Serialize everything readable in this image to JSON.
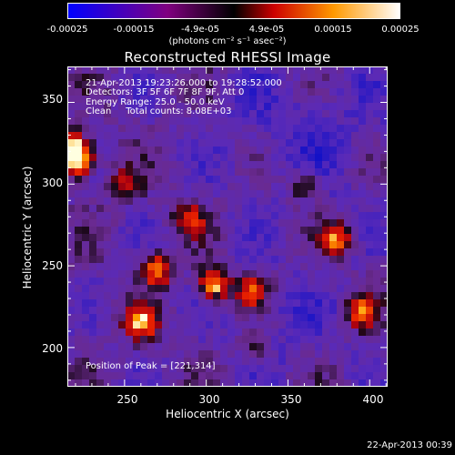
{
  "colorbar": {
    "tick_labels": [
      "-0.00025",
      "-0.00015",
      "-4.9e-05",
      "4.9e-05",
      "0.00015",
      "0.00025"
    ],
    "units": "(photons cm⁻² s⁻¹ asec⁻²)",
    "range": [
      -0.00025,
      0.00025
    ],
    "colors": {
      "low": "#0000ff",
      "mid_low": "#800080",
      "mid": "#000000",
      "mid_high": "#cc0000",
      "high_orange": "#ff9900",
      "top": "#ffffff"
    }
  },
  "title": "Reconstructed RHESSI Image",
  "info": {
    "time_range": "21-Apr-2013 19:23:26.000 to 19:28:52.000",
    "detectors": "Detectors: 3F 5F 6F 7F 8F 9F, Att 0",
    "energy": "Energy Range: 25.0 - 50.0 keV",
    "clean": "Clean     Total counts: 8.08E+03"
  },
  "peak": "Position of Peak = [221,314]",
  "axes": {
    "xlabel": "Heliocentric X (arcsec)",
    "ylabel": "Heliocentric Y (arcsec)",
    "xticks": [
      "250",
      "300",
      "350",
      "400"
    ],
    "yticks": [
      "350",
      "300",
      "250",
      "200"
    ],
    "xlim": [
      215,
      411
    ],
    "ylim": [
      176,
      372
    ]
  },
  "timestamp": "22-Apr-2013 00:39",
  "chart_data": {
    "type": "heatmap",
    "title": "Reconstructed RHESSI Image",
    "xlabel": "Heliocentric X (arcsec)",
    "ylabel": "Heliocentric Y (arcsec)",
    "xlim": [
      215,
      411
    ],
    "ylim": [
      176,
      372
    ],
    "value_range": [
      -0.00025,
      0.00025
    ],
    "peak_position": [
      221,
      314
    ],
    "sources": [
      {
        "x": 221,
        "y": 314,
        "intensity": 1.0
      },
      {
        "x": 218,
        "y": 322,
        "intensity": 0.9
      },
      {
        "x": 305,
        "y": 239,
        "intensity": 0.9
      },
      {
        "x": 260,
        "y": 215,
        "intensity": 0.75
      },
      {
        "x": 270,
        "y": 248,
        "intensity": 0.7
      },
      {
        "x": 380,
        "y": 267,
        "intensity": 0.65
      },
      {
        "x": 395,
        "y": 222,
        "intensity": 0.55
      },
      {
        "x": 328,
        "y": 234,
        "intensity": 0.6
      },
      {
        "x": 290,
        "y": 278,
        "intensity": 0.5
      },
      {
        "x": 250,
        "y": 300,
        "intensity": 0.45
      },
      {
        "x": 360,
        "y": 300,
        "intensity": 0.4
      },
      {
        "x": 330,
        "y": 200,
        "intensity": 0.35
      }
    ]
  }
}
